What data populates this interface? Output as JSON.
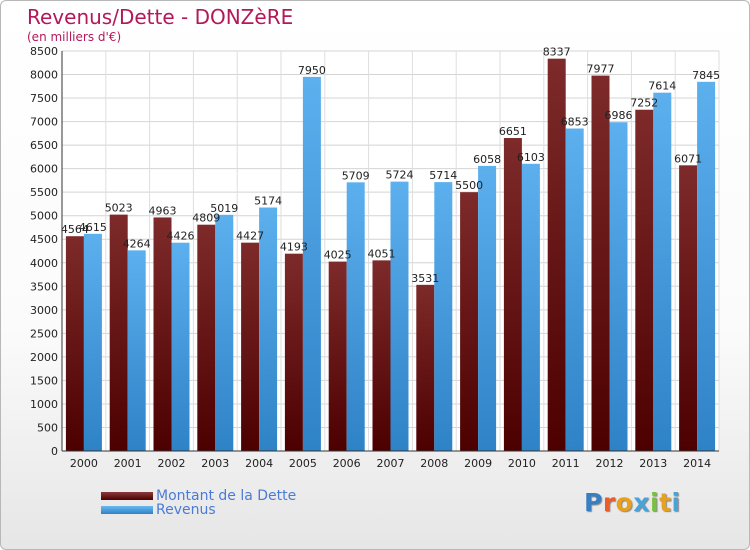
{
  "title": "Revenus/Dette - DONZèRE",
  "subtitle": "(en milliers d'€)",
  "logo": {
    "text": "Proxiti",
    "letter_colors": [
      "#3a7ec2",
      "#e85d2a",
      "#e8a020",
      "#4aa3d8",
      "#7cc043",
      "#e8a020",
      "#4aa3d8"
    ]
  },
  "chart_data": {
    "type": "bar",
    "categories": [
      "2000",
      "2001",
      "2002",
      "2003",
      "2004",
      "2005",
      "2006",
      "2007",
      "2008",
      "2009",
      "2010",
      "2011",
      "2012",
      "2013",
      "2014"
    ],
    "series": [
      {
        "name": "Montant de la Dette",
        "color": "#7a1c1c",
        "values": [
          4564,
          5023,
          4963,
          4809,
          4427,
          4193,
          4025,
          4051,
          3531,
          5500,
          6651,
          8337,
          7977,
          7252,
          6071
        ],
        "labels": [
          "4564",
          "5023",
          "4963",
          "4809",
          "4427",
          "4193",
          "4025",
          "4051",
          "3531",
          "5500",
          "6651",
          "8337",
          "7977",
          "7252",
          "6071"
        ]
      },
      {
        "name": "Revenus",
        "color": "#4ba3e3",
        "values": [
          4615,
          4264,
          4426,
          5019,
          5174,
          7950,
          5709,
          5724,
          5714,
          6058,
          6103,
          6853,
          6986,
          7614,
          7845
        ],
        "labels": [
          "4615",
          "4264",
          "4426",
          "5019",
          "5174",
          "7950",
          "5709",
          "5724",
          "5714",
          "6058",
          "6103",
          "6853",
          "6986",
          "7614",
          "7845"
        ]
      }
    ],
    "ylim": [
      0,
      8500
    ],
    "yticks": [
      "0",
      "500",
      "1000",
      "1500",
      "2000",
      "2500",
      "3000",
      "3500",
      "4000",
      "4500",
      "5000",
      "5500",
      "6000",
      "6500",
      "7000",
      "7500",
      "8000",
      "8500"
    ],
    "grid": true,
    "legend_position": "bottom-left"
  }
}
